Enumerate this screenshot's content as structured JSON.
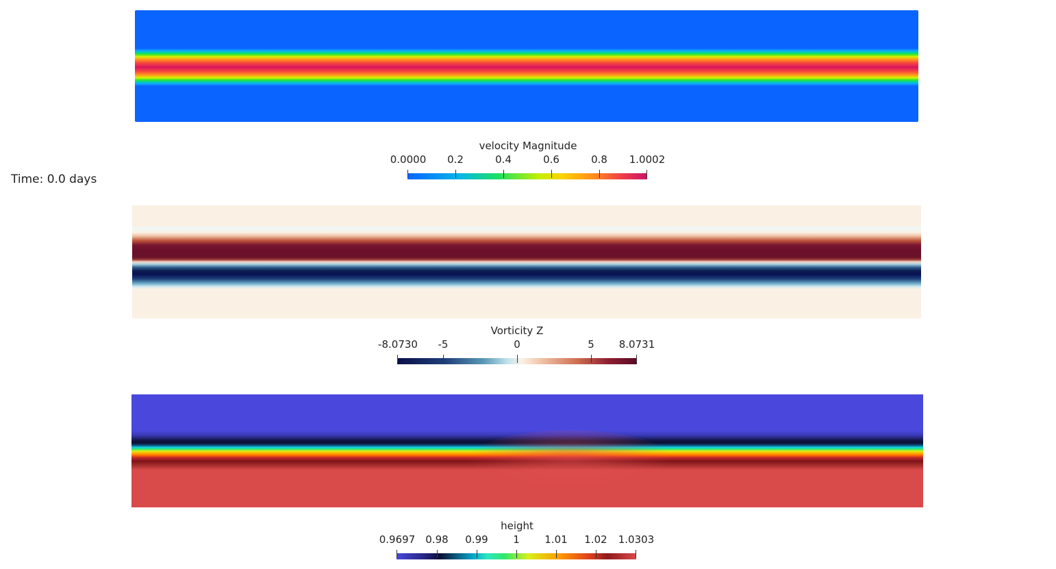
{
  "time_label": "Time: 0.0 days",
  "panels": {
    "velocity": {
      "field": "velocity Magnitude"
    },
    "vorticity": {
      "field": "Vorticity Z"
    },
    "height": {
      "field": "height"
    }
  },
  "colorbars": {
    "velocity": {
      "title": "velocity Magnitude",
      "ticks": [
        "0.0000",
        "0.2",
        "0.4",
        "0.6",
        "0.8",
        "1.0002"
      ],
      "range": [
        0.0,
        1.0002
      ],
      "colors": {
        "low": "#0a64ff",
        "high": "#c8146a"
      }
    },
    "vorticity": {
      "title": "Vorticity Z",
      "ticks": [
        "-8.0730",
        "-5",
        "0",
        "5",
        "8.0731"
      ],
      "range": [
        -8.073,
        8.0731
      ],
      "colors": {
        "low": "#0a0f46",
        "mid": "#fbf1e6",
        "high": "#5a0b26"
      }
    },
    "height": {
      "title": "height",
      "ticks": [
        "0.9697",
        "0.98",
        "0.99",
        "1",
        "1.01",
        "1.02",
        "1.0303"
      ],
      "range": [
        0.9697,
        1.0303
      ],
      "colors": {
        "low": "#4a48dc",
        "high": "#d94a4a"
      }
    }
  }
}
